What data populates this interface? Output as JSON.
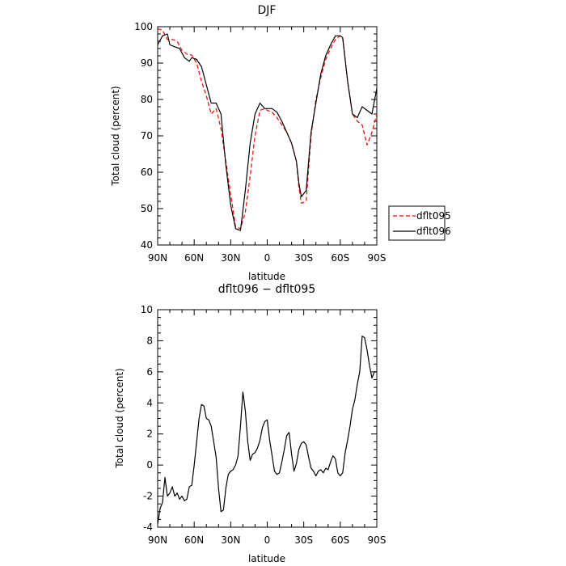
{
  "chart_data": [
    {
      "type": "line",
      "title": "DJF",
      "xlabel": "latitude",
      "ylabel": "Total cloud (percent)",
      "xlim": [
        90,
        -90
      ],
      "ylim": [
        40,
        100
      ],
      "x_tick_values": [
        90,
        60,
        30,
        0,
        -30,
        -60,
        -90
      ],
      "x_tick_labels": [
        "90N",
        "60N",
        "30N",
        "0",
        "30S",
        "60S",
        "90S"
      ],
      "y_ticks": [
        40,
        50,
        60,
        70,
        80,
        90,
        100
      ],
      "legend_position": "right",
      "series": [
        {
          "name": "dflt095",
          "color": "#ff0000",
          "dash": "dashed",
          "x": [
            90,
            86,
            82,
            78,
            74,
            70,
            66,
            62,
            58,
            54,
            50,
            46,
            42,
            38,
            34,
            30,
            26,
            22,
            18,
            14,
            10,
            6,
            2,
            0,
            -4,
            -8,
            -12,
            -16,
            -20,
            -24,
            -26,
            -28,
            -32,
            -36,
            -40,
            -44,
            -48,
            -52,
            -56,
            -60,
            -62,
            -66,
            -70,
            -74,
            -78,
            -82,
            -86,
            -90
          ],
          "y": [
            99.5,
            99,
            96.5,
            96.5,
            96,
            93.5,
            92.5,
            92.2,
            90,
            85,
            81,
            76,
            77.5,
            72,
            63,
            54,
            45,
            44.5,
            49,
            59,
            70,
            77,
            77.5,
            77,
            76.5,
            75,
            73,
            71,
            68,
            63,
            56,
            51.5,
            52,
            70,
            80,
            86,
            91,
            94,
            96.5,
            97.5,
            97,
            85,
            76,
            74,
            73,
            67.5,
            71,
            76
          ]
        },
        {
          "name": "dflt096",
          "color": "#000000",
          "dash": "solid",
          "x": [
            90,
            86,
            82,
            80,
            76,
            72,
            68,
            64,
            62,
            58,
            54,
            50,
            46,
            42,
            38,
            34,
            30,
            26,
            22,
            18,
            14,
            10,
            6,
            2,
            0,
            -4,
            -8,
            -12,
            -16,
            -20,
            -24,
            -26,
            -28,
            -32,
            -36,
            -40,
            -44,
            -48,
            -52,
            -56,
            -60,
            -62,
            -66,
            -70,
            -74,
            -78,
            -82,
            -86,
            -90
          ],
          "y": [
            95,
            97.5,
            98,
            95,
            94.5,
            94,
            91.5,
            90.5,
            91.5,
            91,
            89,
            84,
            79,
            79,
            76,
            62,
            51,
            44.5,
            44,
            55,
            68,
            76,
            79,
            77.5,
            77.5,
            77.5,
            76.5,
            74,
            71,
            68,
            63,
            57,
            53.3,
            55,
            71,
            79,
            87,
            92,
            95,
            97.5,
            97.5,
            97,
            85,
            76,
            75,
            78,
            77,
            76,
            83
          ]
        }
      ]
    },
    {
      "type": "line",
      "title": "dflt096 − dflt095",
      "xlabel": "latitude",
      "ylabel": "Total cloud (percent)",
      "xlim": [
        90,
        -90
      ],
      "ylim": [
        -4,
        10
      ],
      "x_tick_values": [
        90,
        60,
        30,
        0,
        -30,
        -60,
        -90
      ],
      "x_tick_labels": [
        "90N",
        "60N",
        "30N",
        "0",
        "30S",
        "60S",
        "90S"
      ],
      "y_ticks": [
        -4,
        -2,
        0,
        2,
        4,
        6,
        8,
        10
      ],
      "series": [
        {
          "color": "#000000",
          "dash": "solid",
          "x": [
            90,
            88,
            86,
            84,
            82,
            80,
            78,
            76,
            74,
            72,
            70,
            68,
            66,
            64,
            62,
            60,
            58,
            56,
            54,
            52,
            50,
            48,
            46,
            44,
            42,
            40,
            38,
            36,
            34,
            32,
            30,
            28,
            26,
            24,
            22,
            20,
            18,
            16,
            14,
            12,
            10,
            8,
            6,
            4,
            2,
            0,
            -2,
            -4,
            -6,
            -8,
            -10,
            -12,
            -14,
            -16,
            -18,
            -20,
            -22,
            -24,
            -26,
            -28,
            -30,
            -32,
            -34,
            -36,
            -38,
            -40,
            -42,
            -44,
            -46,
            -48,
            -50,
            -52,
            -54,
            -56,
            -58,
            -60,
            -62,
            -64,
            -66,
            -68,
            -70,
            -72,
            -74,
            -76,
            -78,
            -80,
            -82,
            -84,
            -86,
            -88,
            -90
          ],
          "y": [
            -3.8,
            -2.8,
            -2.4,
            -0.8,
            -2,
            -1.8,
            -1.4,
            -2,
            -1.8,
            -2.2,
            -2.0,
            -2.3,
            -2.2,
            -1.4,
            -1.3,
            0,
            1.5,
            3,
            3.9,
            3.8,
            3,
            2.9,
            2.5,
            1.5,
            0.5,
            -1.5,
            -3,
            -2.9,
            -1.5,
            -0.6,
            -0.4,
            -0.3,
            0,
            0.6,
            2.5,
            4.7,
            3.5,
            1.5,
            0.3,
            0.7,
            0.8,
            1.1,
            1.6,
            2.4,
            2.8,
            2.9,
            1.6,
            0.6,
            -0.4,
            -0.6,
            -0.5,
            0.2,
            1,
            1.9,
            2.1,
            0.7,
            -0.4,
            0.1,
            1.0,
            1.4,
            1.5,
            1.3,
            0.5,
            -0.2,
            -0.4,
            -0.7,
            -0.4,
            -0.3,
            -0.5,
            -0.2,
            -0.3,
            0.2,
            0.6,
            0.4,
            -0.5,
            -0.7,
            -0.5,
            0.8,
            1.6,
            2.5,
            3.6,
            4.2,
            5.2,
            6,
            8.3,
            8.2,
            7.4,
            6.4,
            5.6,
            6,
            6
          ]
        }
      ]
    }
  ]
}
